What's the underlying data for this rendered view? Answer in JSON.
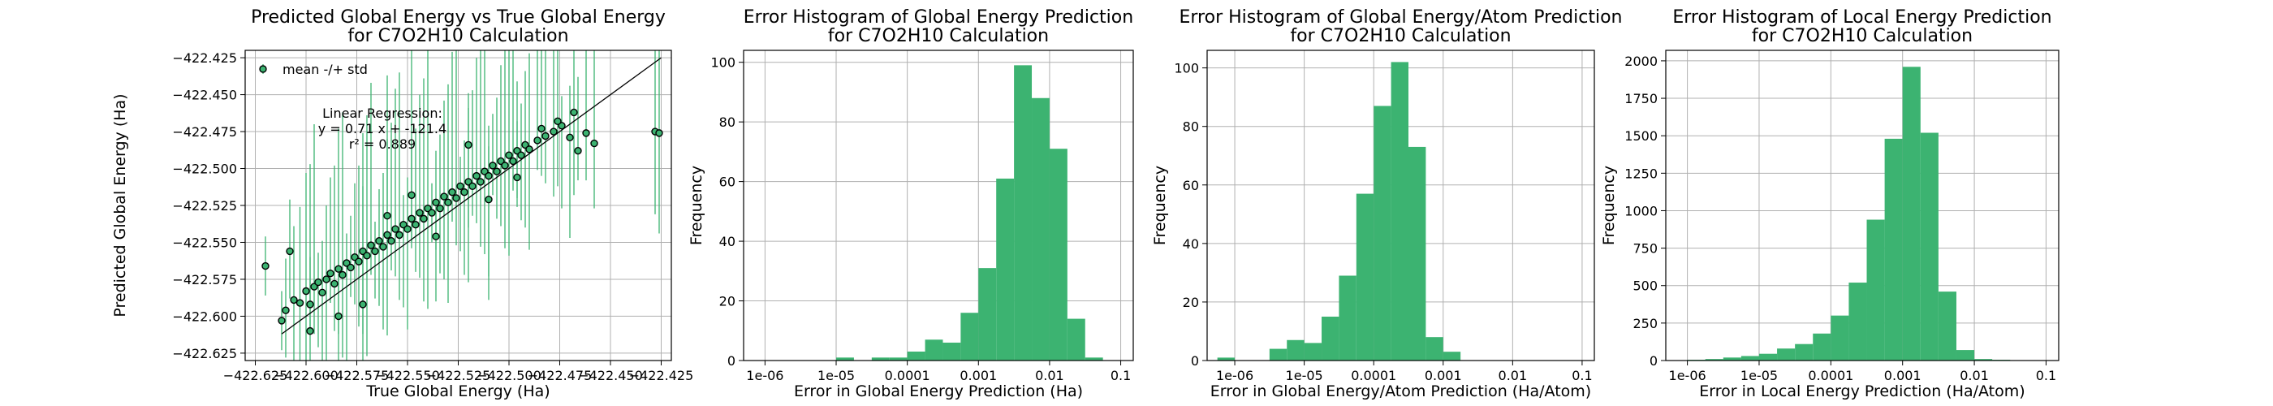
{
  "chart_data": [
    {
      "type": "scatter",
      "title": "Predicted Global Energy vs True Global Energy\nfor C7O2H10 Calculation",
      "xlabel": "True Global Energy (Ha)",
      "ylabel": "Predicted Global Energy (Ha)",
      "xlim": [
        -422.63,
        -422.42
      ],
      "ylim": [
        -422.63,
        -422.42
      ],
      "x_ticks": [
        "−422.625",
        "−422.600",
        "−422.575",
        "−422.550",
        "−422.525",
        "−422.500",
        "−422.475",
        "−422.450",
        "−422.425"
      ],
      "y_ticks": [
        "−422.625",
        "−422.600",
        "−422.575",
        "−422.550",
        "−422.525",
        "−422.500",
        "−422.475",
        "−422.450",
        "−422.425"
      ],
      "legend": "mean -/+ std",
      "legend_placement": "top-left",
      "annotation": [
        "Linear Regression:",
        "y = 0.71 x + -121.4",
        "r² = 0.889"
      ],
      "regression_line": {
        "slope": 0.71,
        "intercept": -121.4,
        "r2": 0.889
      },
      "identity_line": true,
      "grid": true,
      "colors": {
        "marker_face": "#3cb371",
        "marker_edge": "#000000",
        "error_bar": "#3cb371",
        "line": "#000000"
      },
      "points_sampled": [
        [
          -422.612,
          -422.603
        ],
        [
          -422.61,
          -422.596
        ],
        [
          -422.606,
          -422.589
        ],
        [
          -422.603,
          -422.591
        ],
        [
          -422.6,
          -422.583
        ],
        [
          -422.598,
          -422.592
        ],
        [
          -422.596,
          -422.58
        ],
        [
          -422.594,
          -422.577
        ],
        [
          -422.592,
          -422.584
        ],
        [
          -422.59,
          -422.575
        ],
        [
          -422.588,
          -422.571
        ],
        [
          -422.586,
          -422.578
        ],
        [
          -422.584,
          -422.568
        ],
        [
          -422.582,
          -422.572
        ],
        [
          -422.58,
          -422.564
        ],
        [
          -422.578,
          -422.567
        ],
        [
          -422.576,
          -422.56
        ],
        [
          -422.574,
          -422.563
        ],
        [
          -422.572,
          -422.556
        ],
        [
          -422.57,
          -422.559
        ],
        [
          -422.568,
          -422.552
        ],
        [
          -422.566,
          -422.556
        ],
        [
          -422.564,
          -422.549
        ],
        [
          -422.562,
          -422.553
        ],
        [
          -422.56,
          -422.545
        ],
        [
          -422.558,
          -422.549
        ],
        [
          -422.556,
          -422.541
        ],
        [
          -422.554,
          -422.545
        ],
        [
          -422.552,
          -422.538
        ],
        [
          -422.55,
          -422.541
        ],
        [
          -422.548,
          -422.534
        ],
        [
          -422.546,
          -422.538
        ],
        [
          -422.544,
          -422.53
        ],
        [
          -422.542,
          -422.534
        ],
        [
          -422.54,
          -422.527
        ],
        [
          -422.538,
          -422.53
        ],
        [
          -422.536,
          -422.523
        ],
        [
          -422.534,
          -422.527
        ],
        [
          -422.532,
          -422.519
        ],
        [
          -422.53,
          -422.523
        ],
        [
          -422.528,
          -422.516
        ],
        [
          -422.526,
          -422.52
        ],
        [
          -422.524,
          -422.512
        ],
        [
          -422.522,
          -422.516
        ],
        [
          -422.52,
          -422.509
        ],
        [
          -422.518,
          -422.512
        ],
        [
          -422.516,
          -422.505
        ],
        [
          -422.514,
          -422.509
        ],
        [
          -422.512,
          -422.502
        ],
        [
          -422.51,
          -422.505
        ],
        [
          -422.508,
          -422.498
        ],
        [
          -422.506,
          -422.502
        ],
        [
          -422.504,
          -422.495
        ],
        [
          -422.502,
          -422.498
        ],
        [
          -422.5,
          -422.491
        ],
        [
          -422.498,
          -422.495
        ],
        [
          -422.496,
          -422.488
        ],
        [
          -422.494,
          -422.491
        ],
        [
          -422.492,
          -422.484
        ],
        [
          -422.49,
          -422.487
        ],
        [
          -422.486,
          -422.481
        ],
        [
          -422.482,
          -422.478
        ],
        [
          -422.478,
          -422.475
        ],
        [
          -422.474,
          -422.471
        ],
        [
          -422.47,
          -422.479
        ],
        [
          -422.466,
          -422.488
        ],
        [
          -422.462,
          -422.476
        ],
        [
          -422.458,
          -422.483
        ],
        [
          -422.428,
          -422.475
        ],
        [
          -422.426,
          -422.476
        ],
        [
          -422.62,
          -422.566
        ],
        [
          -422.608,
          -422.556
        ],
        [
          -422.598,
          -422.61
        ],
        [
          -422.584,
          -422.6
        ],
        [
          -422.572,
          -422.592
        ],
        [
          -422.56,
          -422.532
        ],
        [
          -422.548,
          -422.518
        ],
        [
          -422.536,
          -422.546
        ],
        [
          -422.52,
          -422.484
        ],
        [
          -422.51,
          -422.521
        ],
        [
          -422.496,
          -422.506
        ],
        [
          -422.484,
          -422.473
        ],
        [
          -422.476,
          -422.468
        ],
        [
          -422.468,
          -422.462
        ]
      ]
    },
    {
      "type": "bar",
      "title": "Error Histogram of Global Energy Prediction\nfor C7O2H10 Calculation",
      "xlabel": "Error in Global Energy Prediction (Ha)",
      "ylabel": "Frequency",
      "x_scale": "log",
      "xlim": [
        5e-07,
        0.15
      ],
      "ylim": [
        0,
        104
      ],
      "x_ticks": [
        "1e-06",
        "1e-05",
        "0.0001",
        "0.001",
        "0.01",
        "0.1"
      ],
      "y_ticks": [
        "0",
        "20",
        "40",
        "60",
        "80",
        "100"
      ],
      "bin_edges_log10": [
        -6,
        -5.75,
        -5.5,
        -5.25,
        -5,
        -4.75,
        -4.5,
        -4.25,
        -4,
        -3.75,
        -3.5,
        -3.25,
        -3,
        -2.75,
        -2.5,
        -2.25,
        -2,
        -1.75,
        -1.5,
        -1.25,
        -1
      ],
      "values": [
        0,
        0,
        0,
        0,
        1,
        0,
        1,
        1,
        3,
        7,
        6,
        16,
        31,
        61,
        99,
        88,
        71,
        14,
        1,
        0
      ],
      "grid": true,
      "bar_color": "#3cb371"
    },
    {
      "type": "bar",
      "title": "Error Histogram of Global Energy/Atom Prediction\nfor C7O2H10 Calculation",
      "xlabel": "Error in Global Energy/Atom Prediction (Ha/Atom)",
      "ylabel": "Frequency",
      "x_scale": "log",
      "xlim": [
        4e-07,
        0.15
      ],
      "ylim": [
        0,
        106
      ],
      "x_ticks": [
        "1e-06",
        "1e-05",
        "0.0001",
        "0.001",
        "0.01",
        "0.1"
      ],
      "y_ticks": [
        "0",
        "20",
        "40",
        "60",
        "80",
        "100"
      ],
      "bin_edges_log10": [
        -6.5,
        -6.25,
        -6,
        -5.75,
        -5.5,
        -5.25,
        -5,
        -4.75,
        -4.5,
        -4.25,
        -4,
        -3.75,
        -3.5,
        -3.25,
        -3,
        -2.75,
        -2.5,
        -2.25,
        -2,
        -1.75,
        -1.5,
        -1.25,
        -1
      ],
      "values": [
        0,
        1,
        0,
        0,
        4,
        7,
        6,
        15,
        29,
        57,
        87,
        102,
        73,
        8,
        3,
        0,
        0,
        0,
        0,
        0,
        0,
        0
      ],
      "grid": true,
      "bar_color": "#3cb371"
    },
    {
      "type": "bar",
      "title": "Error Histogram of Local Energy Prediction\nfor C7O2H10 Calculation",
      "xlabel": "Error in Local Energy Prediction (Ha/Atom)",
      "ylabel": "Frequency",
      "x_scale": "log",
      "xlim": [
        5e-07,
        0.15
      ],
      "ylim": [
        0,
        2070
      ],
      "x_ticks": [
        "1e-06",
        "1e-05",
        "0.0001",
        "0.001",
        "0.01",
        "0.1"
      ],
      "y_ticks": [
        "0",
        "250",
        "500",
        "750",
        "1000",
        "1250",
        "1500",
        "1750",
        "2000"
      ],
      "bin_edges_log10": [
        -6,
        -5.75,
        -5.5,
        -5.25,
        -5,
        -4.75,
        -4.5,
        -4.25,
        -4,
        -3.75,
        -3.5,
        -3.25,
        -3,
        -2.75,
        -2.5,
        -2.25,
        -2,
        -1.75,
        -1.5,
        -1.25,
        -1
      ],
      "values": [
        5,
        10,
        20,
        30,
        45,
        80,
        110,
        180,
        300,
        520,
        940,
        1480,
        1960,
        1520,
        460,
        70,
        10,
        5,
        2,
        0
      ],
      "grid": true,
      "bar_color": "#3cb371"
    }
  ]
}
